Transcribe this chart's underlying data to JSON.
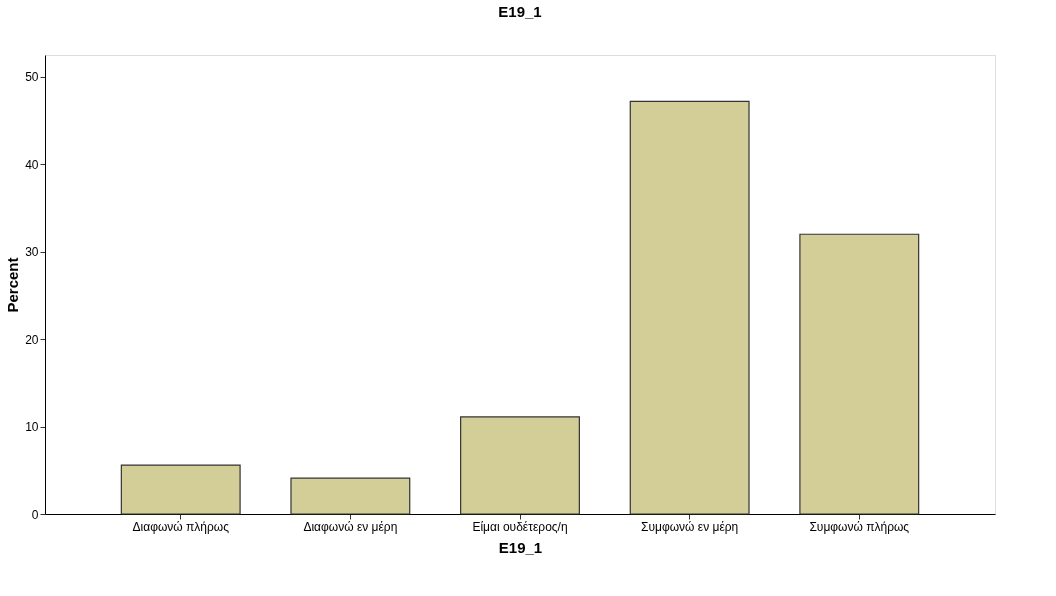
{
  "chart_data": {
    "type": "bar",
    "title": "E19_1",
    "xlabel": "E19_1",
    "ylabel": "Percent",
    "categories": [
      "Διαφωνώ πλήρως",
      "Διαφωνώ εν μέρη",
      "Είμαι ουδέτερος/η",
      "Συμφωνώ εν μέρη",
      "Συμφωνώ πλήρως"
    ],
    "values": [
      5.6,
      4.1,
      11.1,
      47.2,
      32.0
    ],
    "color": "#d3ce97",
    "ylim": [
      0,
      52.5
    ],
    "yticks": [
      0,
      10,
      20,
      30,
      40,
      50
    ],
    "grid": false
  }
}
